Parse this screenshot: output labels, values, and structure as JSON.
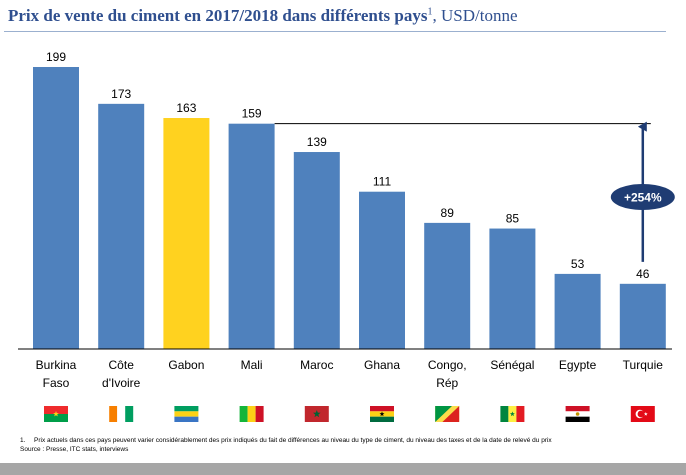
{
  "title": {
    "bold": "Prix de vente du ciment en 2017/2018 dans différents pays",
    "superscript": "1",
    "unit": ", USD/tonne"
  },
  "chart_data": {
    "type": "bar",
    "title": "Prix de vente du ciment en 2017/2018 dans différents pays, USD/tonne",
    "xlabel": "",
    "ylabel": "USD/tonne",
    "ylim": [
      0,
      210
    ],
    "grid": false,
    "categories": [
      [
        "Burkina",
        "Faso"
      ],
      [
        "Côte",
        "d'Ivoire"
      ],
      [
        "Gabon"
      ],
      [
        "Mali"
      ],
      [
        "Maroc"
      ],
      [
        "Ghana"
      ],
      [
        "Congo,",
        "Rép"
      ],
      [
        "Sénégal"
      ],
      [
        "Egypte"
      ],
      [
        "Turquie"
      ]
    ],
    "flags": [
      "burkina-faso-flag",
      "cote-divoire-flag",
      "gabon-flag",
      "mali-flag",
      "maroc-flag",
      "ghana-flag",
      "congo-flag",
      "senegal-flag",
      "egypte-flag",
      "turquie-flag"
    ],
    "values": [
      199,
      173,
      163,
      159,
      139,
      111,
      89,
      85,
      53,
      46
    ],
    "highlight_index": 2,
    "colors": {
      "bar": "#4f81bd",
      "highlight": "#ffd21f",
      "arrow": "#1f3c73",
      "badge": "#1f3c73"
    },
    "annotation": {
      "label": "+254%",
      "from_index": 9,
      "to_value": 163
    }
  },
  "footnote": {
    "number": "1.",
    "text": "Prix actuels dans ces pays peuvent varier considérablement des prix indiqués du fait de différences au niveau du type de ciment, du niveau des taxes et de la date de relevé du prix",
    "source": "Source : Presse, ITC stats, interviews"
  }
}
